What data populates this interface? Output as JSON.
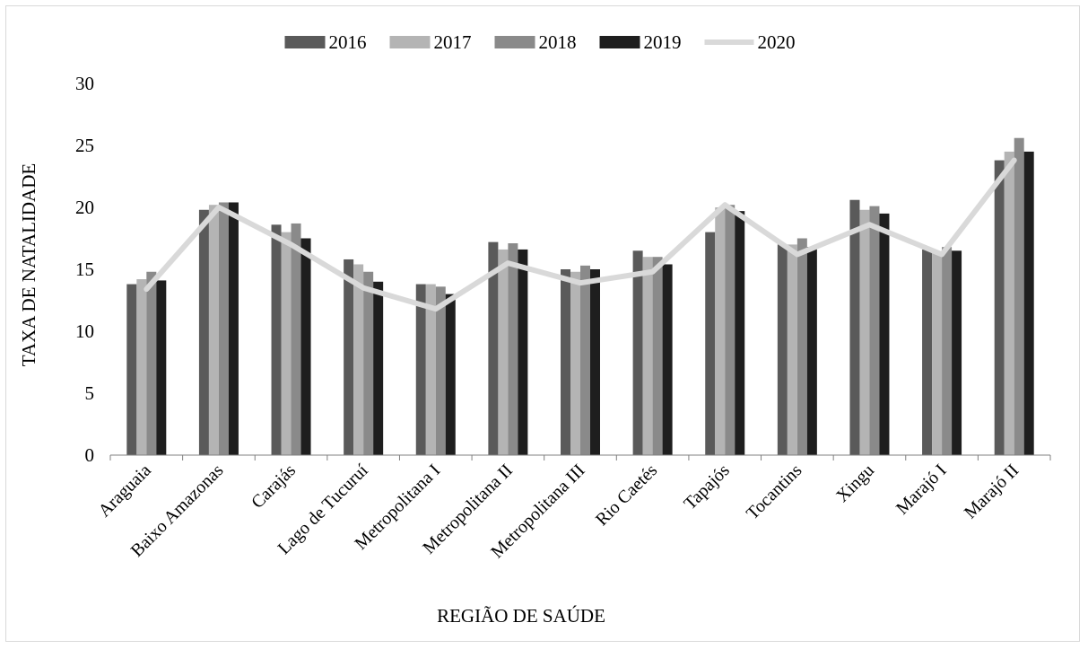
{
  "chart_data": {
    "type": "bar",
    "title": "",
    "xlabel": "REGIÃO DE SAÚDE",
    "ylabel": "TAXA DE NATALIDADE",
    "ylim": [
      0,
      30
    ],
    "yticks": [
      "0",
      "5",
      "10",
      "15",
      "20",
      "25",
      "30"
    ],
    "grid": false,
    "legend_position": "top",
    "categories": [
      "Araguaia",
      "Baixo Amazonas",
      "Carajás",
      "Lago de Tucuruí",
      "Metropolitana I",
      "Metropolitana II",
      "Metropolitana III",
      "Rio Caetés",
      "Tapajós",
      "Tocantins",
      "Xingu",
      "Marajó I",
      "Marajó II"
    ],
    "series": [
      {
        "name": "2016",
        "kind": "bar",
        "color": "#5a5a5a",
        "values": [
          13.8,
          19.8,
          18.6,
          15.8,
          13.8,
          17.2,
          15.0,
          16.5,
          18.0,
          17.0,
          20.6,
          16.6,
          23.8
        ]
      },
      {
        "name": "2017",
        "kind": "bar",
        "color": "#b4b4b4",
        "values": [
          14.2,
          20.2,
          18.0,
          15.4,
          13.8,
          16.6,
          14.8,
          16.0,
          20.0,
          17.0,
          19.8,
          16.4,
          24.5
        ]
      },
      {
        "name": "2018",
        "kind": "bar",
        "color": "#8a8a8a",
        "values": [
          14.8,
          20.4,
          18.7,
          14.8,
          13.6,
          17.1,
          15.3,
          16.0,
          20.2,
          17.5,
          20.1,
          16.8,
          25.6
        ]
      },
      {
        "name": "2019",
        "kind": "bar",
        "color": "#1e1e1e",
        "values": [
          14.1,
          20.4,
          17.5,
          14.0,
          13.0,
          16.6,
          15.0,
          15.4,
          19.7,
          16.8,
          19.5,
          16.5,
          24.5
        ]
      },
      {
        "name": "2020",
        "kind": "line",
        "color": "#d9d9d9",
        "values": [
          13.4,
          20.0,
          17.0,
          13.5,
          11.8,
          15.5,
          13.9,
          14.8,
          20.2,
          16.2,
          18.6,
          16.2,
          23.8
        ]
      }
    ]
  }
}
